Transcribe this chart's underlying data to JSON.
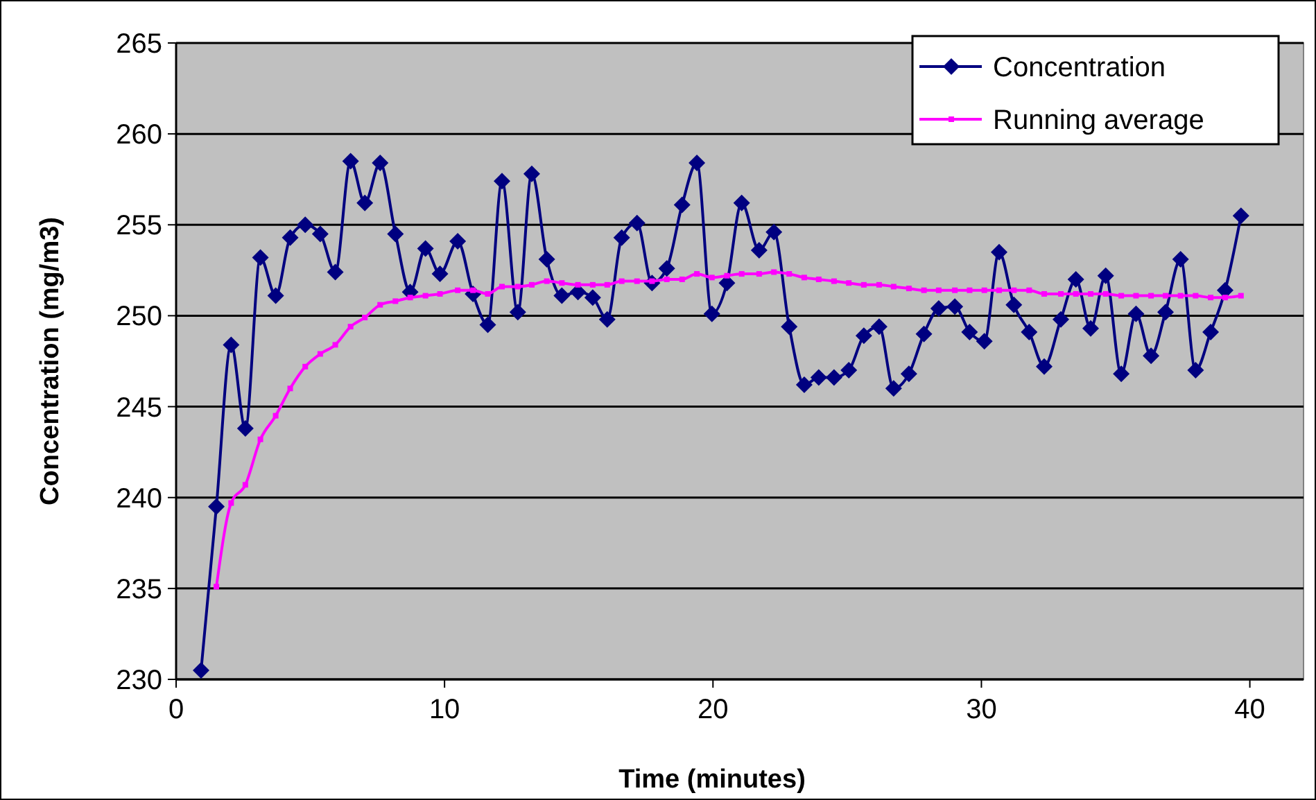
{
  "chart_data": {
    "type": "line",
    "xlabel": "Time (minutes)",
    "ylabel": "Concentration (mg/m3)",
    "xlim": [
      0,
      42
    ],
    "xticks": [
      0,
      10,
      20,
      30,
      40
    ],
    "ylim": [
      230,
      265
    ],
    "yticks": [
      230,
      235,
      240,
      245,
      250,
      255,
      260,
      265
    ],
    "grid": "y",
    "legend": "top right",
    "line_style": "solid",
    "x": [
      0.93,
      1.5,
      2.05,
      2.58,
      3.14,
      3.71,
      4.25,
      4.81,
      5.37,
      5.93,
      6.5,
      7.03,
      7.6,
      8.17,
      8.72,
      9.29,
      9.83,
      10.49,
      11.06,
      11.61,
      12.14,
      12.73,
      13.25,
      13.81,
      14.37,
      14.97,
      15.52,
      16.06,
      16.6,
      17.17,
      17.73,
      18.28,
      18.85,
      19.4,
      19.96,
      20.52,
      21.07,
      21.72,
      22.27,
      22.84,
      23.4,
      23.94,
      24.51,
      25.06,
      25.62,
      26.19,
      26.73,
      27.3,
      27.86,
      28.41,
      29.01,
      29.56,
      30.11,
      30.66,
      31.21,
      31.78,
      32.34,
      32.96,
      33.52,
      34.07,
      34.63,
      35.21,
      35.76,
      36.32,
      36.86,
      37.42,
      37.98,
      38.54,
      39.08,
      39.67
    ],
    "series": [
      {
        "name": "Concentration",
        "color": "#000080",
        "marker": "diamond",
        "values": [
          230.5,
          239.5,
          248.4,
          243.8,
          253.2,
          251.1,
          254.3,
          255.0,
          254.5,
          252.4,
          258.5,
          256.2,
          258.4,
          254.5,
          251.3,
          253.7,
          252.3,
          254.1,
          251.2,
          249.5,
          257.4,
          250.2,
          257.8,
          253.1,
          251.1,
          251.3,
          251.0,
          249.8,
          254.3,
          255.1,
          251.8,
          252.6,
          256.1,
          258.4,
          250.1,
          251.8,
          256.2,
          253.6,
          254.6,
          249.4,
          246.2,
          246.6,
          246.6,
          247.0,
          248.9,
          249.4,
          246.0,
          246.8,
          249.0,
          250.4,
          250.5,
          249.1,
          248.6,
          253.5,
          250.6,
          249.1,
          247.2,
          249.8,
          252.0,
          249.3,
          252.2,
          246.8,
          250.1,
          247.8,
          250.2,
          253.1,
          247.0,
          249.1,
          251.4,
          255.5
        ]
      },
      {
        "name": "Running average",
        "color": "#ff00ff",
        "marker": "square",
        "values": [
          null,
          235.1,
          239.7,
          240.7,
          243.2,
          244.5,
          246.0,
          247.2,
          247.9,
          248.4,
          249.4,
          249.9,
          250.6,
          250.8,
          251.0,
          251.1,
          251.2,
          251.4,
          251.4,
          251.2,
          251.6,
          251.6,
          251.7,
          251.9,
          251.8,
          251.7,
          251.7,
          251.7,
          251.9,
          251.9,
          251.9,
          252.0,
          252.0,
          252.3,
          252.1,
          252.2,
          252.3,
          252.3,
          252.4,
          252.3,
          252.1,
          252.0,
          251.9,
          251.8,
          251.7,
          251.7,
          251.6,
          251.5,
          251.4,
          251.4,
          251.4,
          251.4,
          251.4,
          251.4,
          251.4,
          251.4,
          251.2,
          251.2,
          251.2,
          251.2,
          251.2,
          251.1,
          251.1,
          251.1,
          251.1,
          251.1,
          251.1,
          251.0,
          251.0,
          251.1
        ]
      }
    ]
  }
}
